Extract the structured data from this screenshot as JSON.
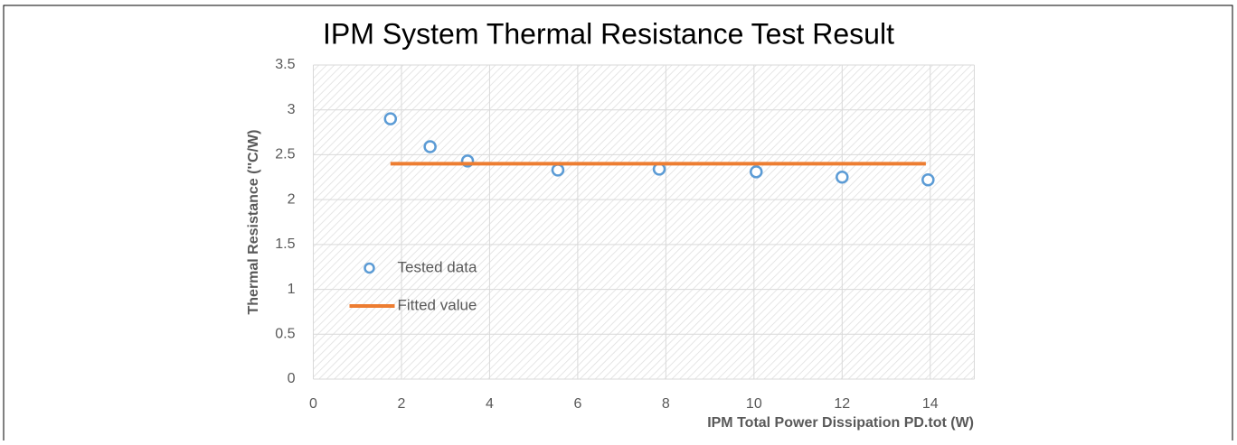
{
  "chart_data": {
    "type": "scatter",
    "title": "IPM System Thermal Resistance Test Result",
    "xlabel": "IPM Total Power Dissipation PD.tot (W)",
    "ylabel": "Thermal Resistance (''C/W)",
    "xlim": [
      0,
      15
    ],
    "xticks": [
      0,
      2,
      4,
      6,
      8,
      10,
      12,
      14
    ],
    "ylim": [
      0,
      3.5
    ],
    "yticks": [
      0,
      0.5,
      1,
      1.5,
      2,
      2.5,
      3,
      3.5
    ],
    "grid": true,
    "legend": "center-left",
    "series": [
      {
        "name": "Tested data",
        "type": "scatter",
        "color": "#5b9bd5",
        "x": [
          1.75,
          2.65,
          3.5,
          5.55,
          7.85,
          10.05,
          12,
          13.95
        ],
        "values": [
          2.9,
          2.59,
          2.43,
          2.33,
          2.34,
          2.31,
          2.25,
          2.22
        ]
      },
      {
        "name": "Fitted value",
        "type": "line",
        "color": "#ed7d31",
        "x": [
          1.75,
          13.9
        ],
        "values": [
          2.4,
          2.4
        ]
      }
    ]
  }
}
